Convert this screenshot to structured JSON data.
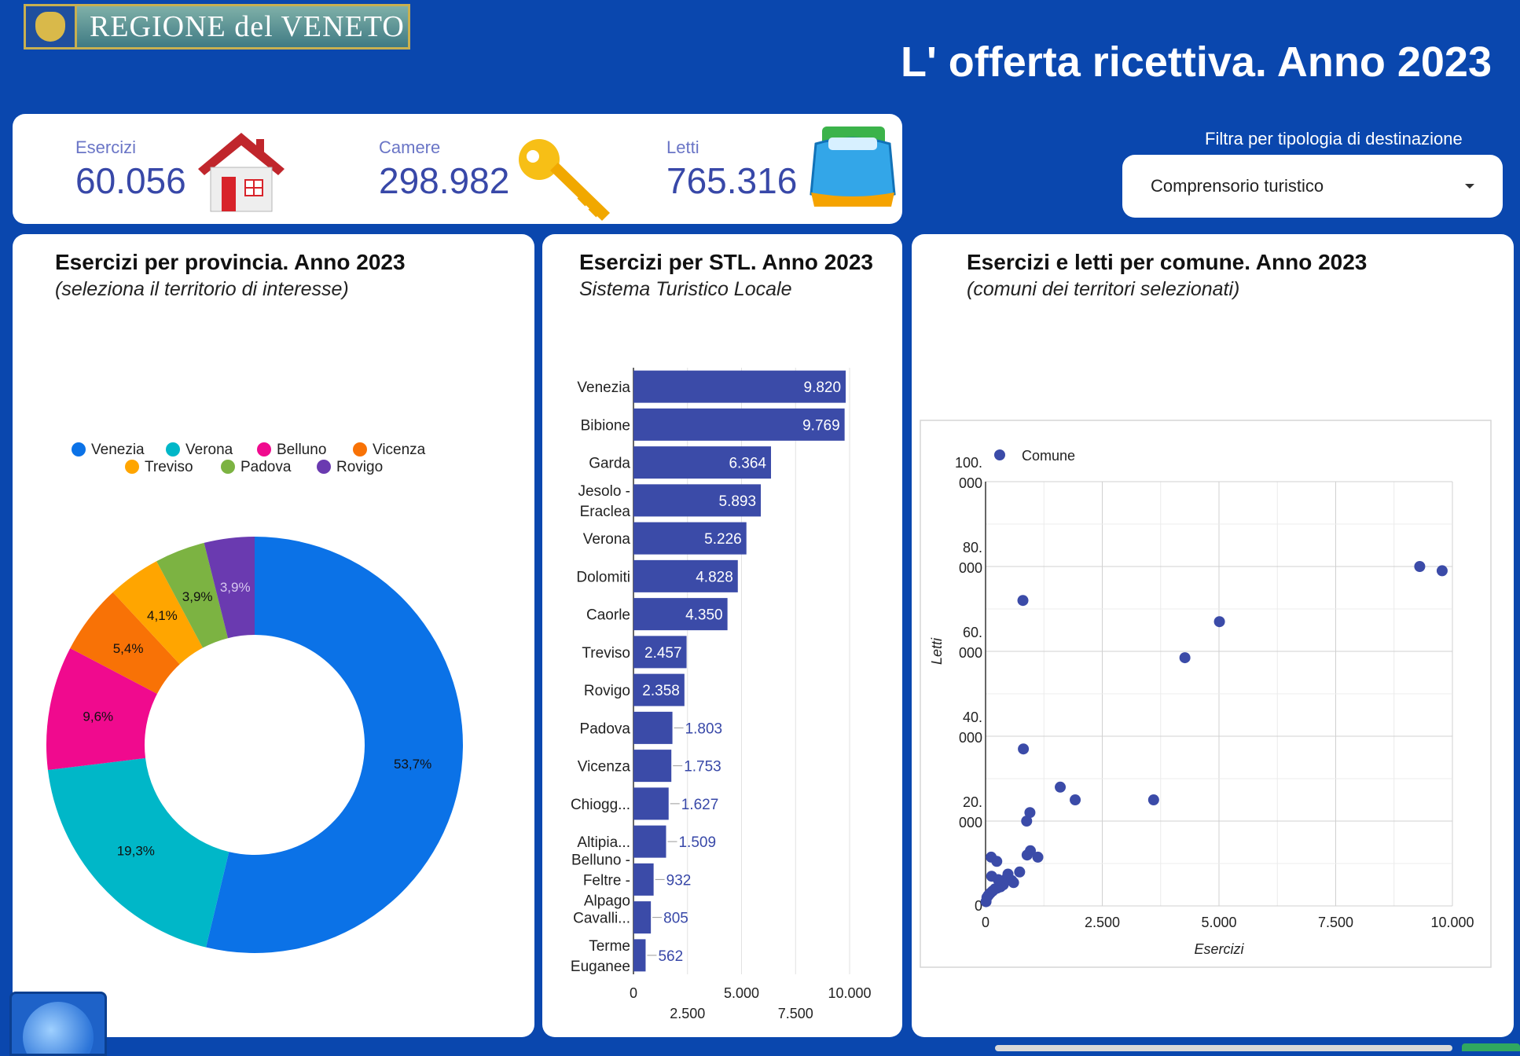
{
  "header": {
    "logo_text": "REGIONE del VENETO",
    "title": "L' offerta ricettiva. Anno 2023"
  },
  "kpis": [
    {
      "label": "Esercizi",
      "value": "60.056",
      "icon": "house-icon"
    },
    {
      "label": "Camere",
      "value": "298.982",
      "icon": "key-icon"
    },
    {
      "label": "Letti",
      "value": "765.316",
      "icon": "bed-icon"
    }
  ],
  "filter": {
    "label": "Filtra per tipologia di destinazione",
    "selected": "Comprensorio turistico"
  },
  "panels": {
    "donut": {
      "title": "Esercizi per provincia. Anno 2023",
      "subtitle": "(seleziona il territorio di interesse)"
    },
    "bars": {
      "title": "Esercizi per STL. Anno 2023",
      "subtitle": "Sistema Turistico Locale"
    },
    "scatter": {
      "title": "Esercizi e letti per comune. Anno 2023",
      "subtitle": "(comuni dei territori selezionati)"
    }
  },
  "colors": {
    "background": "#0a47ae",
    "kpi_text": "#3848a8",
    "bar": "#3b4ba8",
    "scatter_point": "#3b4ba8"
  },
  "chart_data": [
    {
      "type": "pie",
      "variant": "donut",
      "legend_position": "top",
      "labels": [
        "Venezia",
        "Verona",
        "Belluno",
        "Vicenza",
        "Treviso",
        "Padova",
        "Rovigo"
      ],
      "values": [
        53.7,
        19.3,
        9.6,
        5.4,
        4.1,
        3.9,
        3.9
      ],
      "value_labels": [
        "53,7%",
        "19,3%",
        "9,6%",
        "5,4%",
        "4,1%",
        "3,9%",
        "3,9%"
      ],
      "colors": [
        "#0b72e7",
        "#00b7c8",
        "#f00a8e",
        "#f87206",
        "#ffa500",
        "#7cb342",
        "#6a3ab0"
      ]
    },
    {
      "type": "bar",
      "orientation": "horizontal",
      "categories": [
        "Venezia",
        "Bibione",
        "Garda",
        "Jesolo - Eraclea",
        "Verona",
        "Dolomiti",
        "Caorle",
        "Treviso",
        "Rovigo",
        "Padova",
        "Vicenza",
        "Chiogg...",
        "Altipia...",
        "Belluno - Feltre - Alpago",
        "Cavalli...",
        "Terme Euganee"
      ],
      "values": [
        9820,
        9769,
        6364,
        5893,
        5226,
        4828,
        4350,
        2457,
        2358,
        1803,
        1753,
        1627,
        1509,
        932,
        805,
        562
      ],
      "value_labels": [
        "9.820",
        "9.769",
        "6.364",
        "5.893",
        "5.226",
        "4.828",
        "4.350",
        "2.457",
        "2.358",
        "1.803",
        "1.753",
        "1.627",
        "1.509",
        "932",
        "805",
        "562"
      ],
      "category_display": [
        [
          "Venezia"
        ],
        [
          "Bibione"
        ],
        [
          "Garda"
        ],
        [
          "Jesolo -",
          "Eraclea"
        ],
        [
          "Verona"
        ],
        [
          "Dolomiti"
        ],
        [
          "Caorle"
        ],
        [
          "Treviso"
        ],
        [
          "Rovigo"
        ],
        [
          "Padova"
        ],
        [
          "Vicenza"
        ],
        [
          "Chiogg..."
        ],
        [
          "Altipia..."
        ],
        [
          "Belluno -",
          "Feltre -",
          "Alpago"
        ],
        [
          "Cavalli..."
        ],
        [
          "Terme",
          "Euganee"
        ]
      ],
      "xlim": [
        0,
        10000
      ],
      "xticks": [
        0,
        2500,
        5000,
        7500,
        10000
      ],
      "xtick_labels": [
        "0",
        "2.500",
        "5.000",
        "7.500",
        "10.000"
      ]
    },
    {
      "type": "scatter",
      "series": [
        {
          "name": "Comune",
          "points": [
            [
              9300,
              80000
            ],
            [
              9780,
              79000
            ],
            [
              5010,
              67000
            ],
            [
              4270,
              58500
            ],
            [
              800,
              72000
            ],
            [
              810,
              37000
            ],
            [
              3600,
              25000
            ],
            [
              1600,
              28000
            ],
            [
              1920,
              25000
            ],
            [
              950,
              22000
            ],
            [
              880,
              20000
            ],
            [
              960,
              13000
            ],
            [
              890,
              12000
            ],
            [
              1120,
              11500
            ],
            [
              120,
              11500
            ],
            [
              240,
              10500
            ],
            [
              730,
              8000
            ],
            [
              480,
              7500
            ],
            [
              450,
              6500
            ],
            [
              560,
              6000
            ],
            [
              600,
              5500
            ],
            [
              380,
              5000
            ],
            [
              320,
              4500
            ],
            [
              250,
              4200
            ],
            [
              200,
              4000
            ],
            [
              150,
              3500
            ],
            [
              100,
              3000
            ],
            [
              60,
              2500
            ],
            [
              30,
              2000
            ],
            [
              10,
              1000
            ],
            [
              130,
              7000
            ],
            [
              270,
              6200
            ]
          ]
        }
      ],
      "xlabel": "Esercizi",
      "ylabel": "Letti",
      "xlim": [
        0,
        10000
      ],
      "ylim": [
        0,
        100000
      ],
      "xticks": [
        0,
        2500,
        5000,
        7500,
        10000
      ],
      "xtick_labels": [
        "0",
        "2.500",
        "5.000",
        "7.500",
        "10.000"
      ],
      "yticks": [
        0,
        20000,
        40000,
        60000,
        80000,
        100000
      ],
      "ytick_labels": [
        [
          "0"
        ],
        [
          "20.",
          "000"
        ],
        [
          "40.",
          "000"
        ],
        [
          "60.",
          "000"
        ],
        [
          "80.",
          "000"
        ],
        [
          "100.",
          "000"
        ]
      ],
      "grid": true,
      "legend_position": "top-left"
    }
  ]
}
